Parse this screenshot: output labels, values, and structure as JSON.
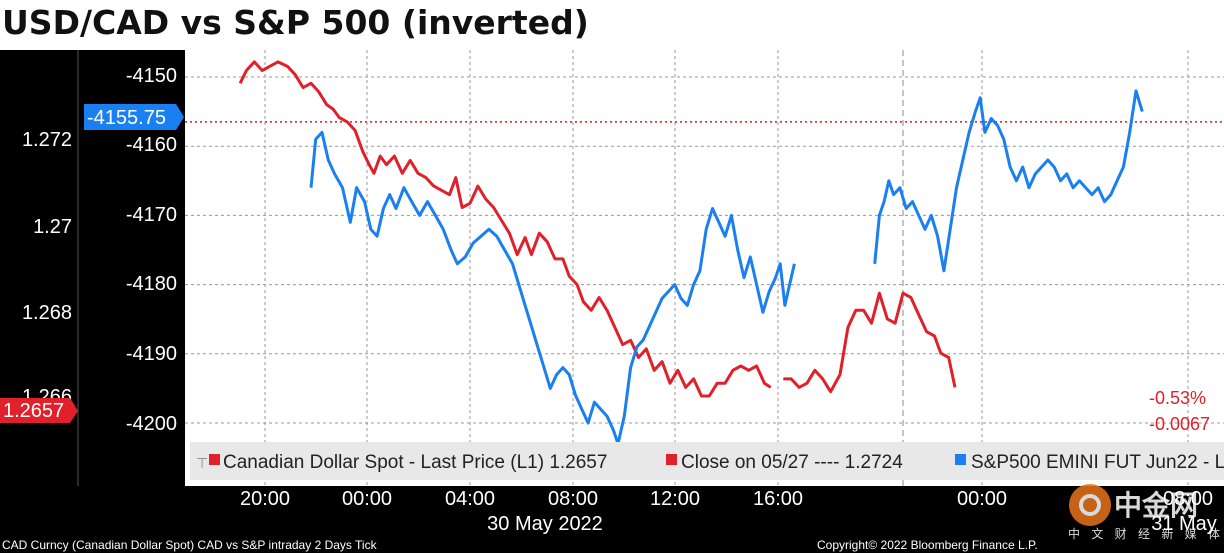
{
  "title": "USD/CAD vs S&P 500 (inverted)",
  "colors": {
    "cad": "#e0202a",
    "sp500": "#1a7ff0",
    "close_line": "#cc1a1a",
    "panel_bg": "#ffffff",
    "axis_bg": "#000000"
  },
  "chart_data": {
    "type": "line",
    "title": "USD/CAD vs S&P 500 (inverted)",
    "x_axis": {
      "tick_labels": [
        "20:00",
        "00:00",
        "04:00",
        "08:00",
        "12:00",
        "16:00",
        "00:00",
        "08:00"
      ],
      "date_labels": [
        "30 May 2022",
        "31 May"
      ]
    },
    "y_left": {
      "ticks": [
        "1.272",
        "1.27",
        "1.268",
        "1.266"
      ],
      "range": [
        1.2642,
        1.2739
      ],
      "current_value_label": "1.2657"
    },
    "y_right": {
      "ticks": [
        "-4150",
        "-4160",
        "-4170",
        "-4180",
        "-4190",
        "-4200"
      ],
      "range": [
        -4202,
        -4147
      ],
      "current_value_label": "-4155.75"
    },
    "grid": true,
    "legend_position": "bottom",
    "legend": {
      "cad": "Canadian Dollar Spot - Last Price (L1) 1.2657",
      "close": "Close on 05/27 ---- 1.2724",
      "sp500": "S&P500 EMINI FUT Jun22 - L"
    },
    "end_labels": [
      "-0.53%",
      "-0.0067"
    ],
    "series": [
      {
        "name": "Canadian Dollar Spot - Last Price (L1)",
        "axis": "left",
        "segments": [
          [
            [
              17.5,
              1.2733
            ],
            [
              17.9,
              1.2736
            ],
            [
              18.4,
              1.2738
            ],
            [
              18.9,
              1.2736
            ],
            [
              19.4,
              1.2737
            ],
            [
              19.9,
              1.2738
            ],
            [
              20.5,
              1.2737
            ],
            [
              21.0,
              1.2735
            ],
            [
              21.5,
              1.2732
            ],
            [
              22.0,
              1.2733
            ],
            [
              22.5,
              1.2731
            ],
            [
              23.0,
              1.2728
            ],
            [
              23.4,
              1.2727
            ],
            [
              23.8,
              1.2725
            ],
            [
              24.3,
              1.2724
            ],
            [
              24.8,
              1.2722
            ],
            [
              25.3,
              1.2717
            ],
            [
              25.7,
              1.2714
            ],
            [
              26.0,
              1.2712
            ],
            [
              26.4,
              1.2716
            ],
            [
              26.8,
              1.2714
            ],
            [
              27.3,
              1.2716
            ],
            [
              27.8,
              1.2712
            ],
            [
              28.3,
              1.2715
            ],
            [
              28.8,
              1.2712
            ],
            [
              29.3,
              1.2711
            ],
            [
              29.8,
              1.2709
            ],
            [
              30.3,
              1.2708
            ],
            [
              30.8,
              1.2707
            ],
            [
              31.2,
              1.2711
            ],
            [
              31.6,
              1.2704
            ],
            [
              32.1,
              1.2705
            ],
            [
              32.6,
              1.2709
            ],
            [
              33.1,
              1.2706
            ],
            [
              33.6,
              1.2704
            ],
            [
              34.1,
              1.2701
            ],
            [
              34.6,
              1.2698
            ],
            [
              35.1,
              1.2693
            ],
            [
              35.6,
              1.2697
            ],
            [
              36.0,
              1.2693
            ],
            [
              36.5,
              1.2698
            ],
            [
              37.0,
              1.2696
            ],
            [
              37.5,
              1.2692
            ],
            [
              38.0,
              1.2692
            ],
            [
              38.4,
              1.2688
            ],
            [
              38.9,
              1.2686
            ],
            [
              39.3,
              1.2682
            ],
            [
              39.8,
              1.268
            ],
            [
              40.3,
              1.2683
            ],
            [
              40.8,
              1.268
            ],
            [
              41.3,
              1.2676
            ],
            [
              41.8,
              1.2672
            ],
            [
              42.3,
              1.2673
            ],
            [
              42.8,
              1.2669
            ],
            [
              43.3,
              1.2671
            ],
            [
              43.8,
              1.2666
            ],
            [
              44.3,
              1.2668
            ],
            [
              44.8,
              1.2663
            ],
            [
              45.3,
              1.2666
            ],
            [
              45.8,
              1.2662
            ],
            [
              46.3,
              1.2664
            ],
            [
              46.8,
              1.266
            ],
            [
              47.3,
              1.266
            ],
            [
              47.8,
              1.2663
            ],
            [
              48.3,
              1.2663
            ],
            [
              48.8,
              1.2666
            ],
            [
              49.3,
              1.2667
            ],
            [
              49.8,
              1.2666
            ],
            [
              50.3,
              1.2667
            ],
            [
              50.8,
              1.2663
            ],
            [
              51.2,
              1.2662
            ]
          ],
          [
            [
              52.0,
              1.2664
            ],
            [
              52.5,
              1.2664
            ],
            [
              53.0,
              1.2662
            ],
            [
              53.5,
              1.2663
            ],
            [
              54.0,
              1.2666
            ],
            [
              54.5,
              1.2664
            ],
            [
              55.0,
              1.2661
            ],
            [
              55.6,
              1.2665
            ],
            [
              56.1,
              1.2676
            ],
            [
              56.6,
              1.268
            ],
            [
              57.1,
              1.268
            ],
            [
              57.6,
              1.2677
            ],
            [
              58.1,
              1.2684
            ],
            [
              58.6,
              1.2678
            ],
            [
              59.1,
              1.2677
            ],
            [
              59.6,
              1.2684
            ],
            [
              60.1,
              1.2683
            ],
            [
              60.6,
              1.2679
            ],
            [
              61.1,
              1.2675
            ],
            [
              61.6,
              1.2674
            ],
            [
              62.0,
              1.267
            ],
            [
              62.5,
              1.2669
            ],
            [
              62.9,
              1.2662
            ]
          ]
        ]
      },
      {
        "name": "S&P500 EMINI FUT Jun22",
        "axis": "right",
        "segments": [
          [
            [
              22.0,
              -4166
            ],
            [
              22.3,
              -4159
            ],
            [
              22.7,
              -4158
            ],
            [
              23.1,
              -4162
            ],
            [
              23.5,
              -4164
            ],
            [
              24.0,
              -4166
            ],
            [
              24.5,
              -4171
            ],
            [
              24.9,
              -4166
            ],
            [
              25.4,
              -4168
            ],
            [
              25.8,
              -4172
            ],
            [
              26.2,
              -4173
            ],
            [
              26.6,
              -4169
            ],
            [
              27.0,
              -4167
            ],
            [
              27.4,
              -4169
            ],
            [
              27.9,
              -4166
            ],
            [
              28.4,
              -4168
            ],
            [
              28.9,
              -4170
            ],
            [
              29.4,
              -4168
            ],
            [
              29.9,
              -4170
            ],
            [
              30.4,
              -4172
            ],
            [
              30.9,
              -4175
            ],
            [
              31.3,
              -4177
            ],
            [
              31.8,
              -4176
            ],
            [
              32.3,
              -4174
            ],
            [
              32.8,
              -4173
            ],
            [
              33.3,
              -4172
            ],
            [
              33.8,
              -4173
            ],
            [
              34.3,
              -4175
            ],
            [
              34.8,
              -4177
            ],
            [
              35.2,
              -4180
            ],
            [
              35.6,
              -4183
            ],
            [
              36.0,
              -4186
            ],
            [
              36.4,
              -4189
            ],
            [
              36.8,
              -4192
            ],
            [
              37.2,
              -4195
            ],
            [
              37.6,
              -4193
            ],
            [
              38.0,
              -4192
            ],
            [
              38.4,
              -4193
            ],
            [
              38.8,
              -4196
            ],
            [
              39.2,
              -4198
            ],
            [
              39.6,
              -4200
            ],
            [
              40.0,
              -4197
            ],
            [
              40.4,
              -4198
            ],
            [
              40.8,
              -4199
            ],
            [
              41.2,
              -4201
            ],
            [
              41.5,
              -4203
            ],
            [
              41.9,
              -4199
            ],
            [
              42.3,
              -4192
            ],
            [
              42.7,
              -4189
            ],
            [
              43.1,
              -4188
            ],
            [
              43.5,
              -4186
            ],
            [
              43.9,
              -4184
            ],
            [
              44.3,
              -4182
            ],
            [
              44.7,
              -4181
            ],
            [
              45.1,
              -4180
            ],
            [
              45.5,
              -4182
            ],
            [
              45.9,
              -4183
            ],
            [
              46.3,
              -4180
            ],
            [
              46.7,
              -4178
            ],
            [
              47.1,
              -4172
            ],
            [
              47.5,
              -4169
            ],
            [
              47.9,
              -4171
            ],
            [
              48.3,
              -4173
            ],
            [
              48.7,
              -4170
            ],
            [
              49.1,
              -4175
            ],
            [
              49.5,
              -4179
            ],
            [
              49.9,
              -4176
            ],
            [
              50.3,
              -4180
            ],
            [
              50.7,
              -4184
            ],
            [
              51.1,
              -4181
            ],
            [
              51.5,
              -4179
            ],
            [
              51.8,
              -4177
            ],
            [
              52.1,
              -4183
            ],
            [
              52.4,
              -4180
            ],
            [
              52.7,
              -4177
            ]
          ],
          [
            [
              57.8,
              -4177
            ],
            [
              58.1,
              -4170
            ],
            [
              58.4,
              -4168
            ],
            [
              58.7,
              -4165
            ],
            [
              59.0,
              -4167
            ],
            [
              59.4,
              -4166
            ],
            [
              59.8,
              -4169
            ],
            [
              60.2,
              -4168
            ],
            [
              60.6,
              -4170
            ],
            [
              61.0,
              -4172
            ],
            [
              61.4,
              -4170
            ],
            [
              61.8,
              -4173
            ],
            [
              62.2,
              -4178
            ],
            [
              62.6,
              -4172
            ],
            [
              63.0,
              -4166
            ],
            [
              63.4,
              -4162
            ],
            [
              63.8,
              -4158
            ],
            [
              64.2,
              -4155
            ],
            [
              64.5,
              -4153
            ],
            [
              64.8,
              -4158
            ],
            [
              65.2,
              -4156
            ],
            [
              65.6,
              -4157
            ],
            [
              66.0,
              -4159
            ],
            [
              66.4,
              -4163
            ],
            [
              66.8,
              -4165
            ],
            [
              67.2,
              -4163
            ],
            [
              67.6,
              -4166
            ],
            [
              68.0,
              -4164
            ],
            [
              68.4,
              -4163
            ],
            [
              68.8,
              -4162
            ],
            [
              69.2,
              -4163
            ],
            [
              69.6,
              -4165
            ],
            [
              70.0,
              -4164
            ],
            [
              70.4,
              -4166
            ],
            [
              70.8,
              -4165
            ],
            [
              71.2,
              -4166
            ],
            [
              71.6,
              -4167
            ],
            [
              72.0,
              -4166
            ],
            [
              72.4,
              -4168
            ],
            [
              72.8,
              -4167
            ],
            [
              73.2,
              -4165
            ],
            [
              73.6,
              -4163
            ],
            [
              74.0,
              -4158
            ],
            [
              74.4,
              -4152
            ],
            [
              74.8,
              -4155
            ]
          ]
        ]
      },
      {
        "name": "Close on 05/27",
        "axis": "left",
        "value": 1.2724
      }
    ]
  },
  "footer": {
    "left": "CAD Curncy (Canadian Dollar Spot) CAD vs S&P intraday 2 Days  Tick",
    "right": "Copyright© 2022 Bloomberg Finance L.P."
  },
  "watermark": {
    "text": "中金网",
    "sub": "中 文 财 经 新 媒 体"
  }
}
